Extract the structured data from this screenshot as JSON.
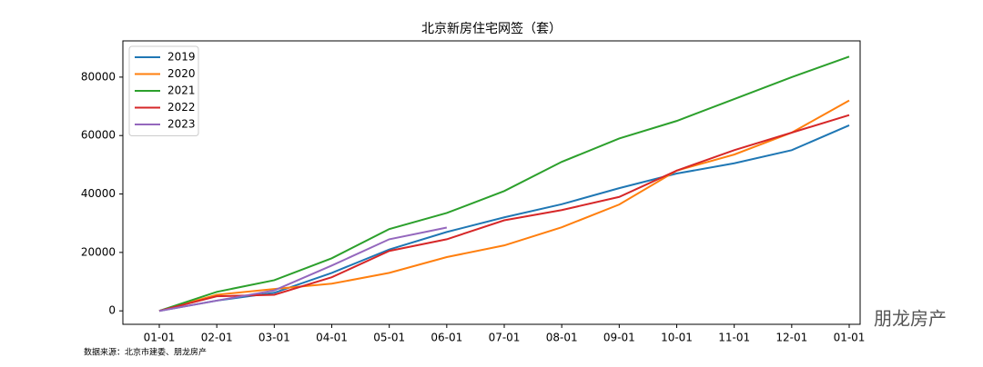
{
  "chart_data": {
    "type": "line",
    "title": "北京新房住宅网签（套）",
    "categories": [
      "01-01",
      "02-01",
      "03-01",
      "04-01",
      "05-01",
      "06-01",
      "07-01",
      "08-01",
      "09-01",
      "10-01",
      "11-01",
      "12-01",
      "01-01"
    ],
    "series": [
      {
        "name": "2019",
        "color": "#1f77b4",
        "values": [
          0,
          3500,
          6200,
          13000,
          21000,
          27000,
          32000,
          36500,
          42000,
          47000,
          50500,
          55000,
          63500
        ]
      },
      {
        "name": "2020",
        "color": "#ff7f0e",
        "values": [
          0,
          5500,
          7500,
          9300,
          13000,
          18400,
          22400,
          28600,
          36400,
          48000,
          53500,
          61000,
          72000
        ]
      },
      {
        "name": "2021",
        "color": "#2ca02c",
        "values": [
          0,
          6500,
          10500,
          18000,
          28000,
          33500,
          41000,
          51000,
          59000,
          65000,
          72500,
          80000,
          87000
        ]
      },
      {
        "name": "2022",
        "color": "#d62728",
        "values": [
          0,
          5000,
          5500,
          11500,
          20500,
          24500,
          31000,
          34500,
          39000,
          48000,
          55000,
          61000,
          67000
        ]
      },
      {
        "name": "2023",
        "color": "#9467bd",
        "values": [
          0,
          3500,
          7000,
          15500,
          24500,
          28500,
          null,
          null,
          null,
          null,
          null,
          null,
          null
        ]
      }
    ],
    "ylim": [
      -4600,
      92400
    ],
    "yticks": [
      0,
      20000,
      40000,
      60000,
      80000
    ],
    "legend": "upper left",
    "source": "数据来源：北京市建委、朋龙房产",
    "watermark": "朋龙房产"
  }
}
